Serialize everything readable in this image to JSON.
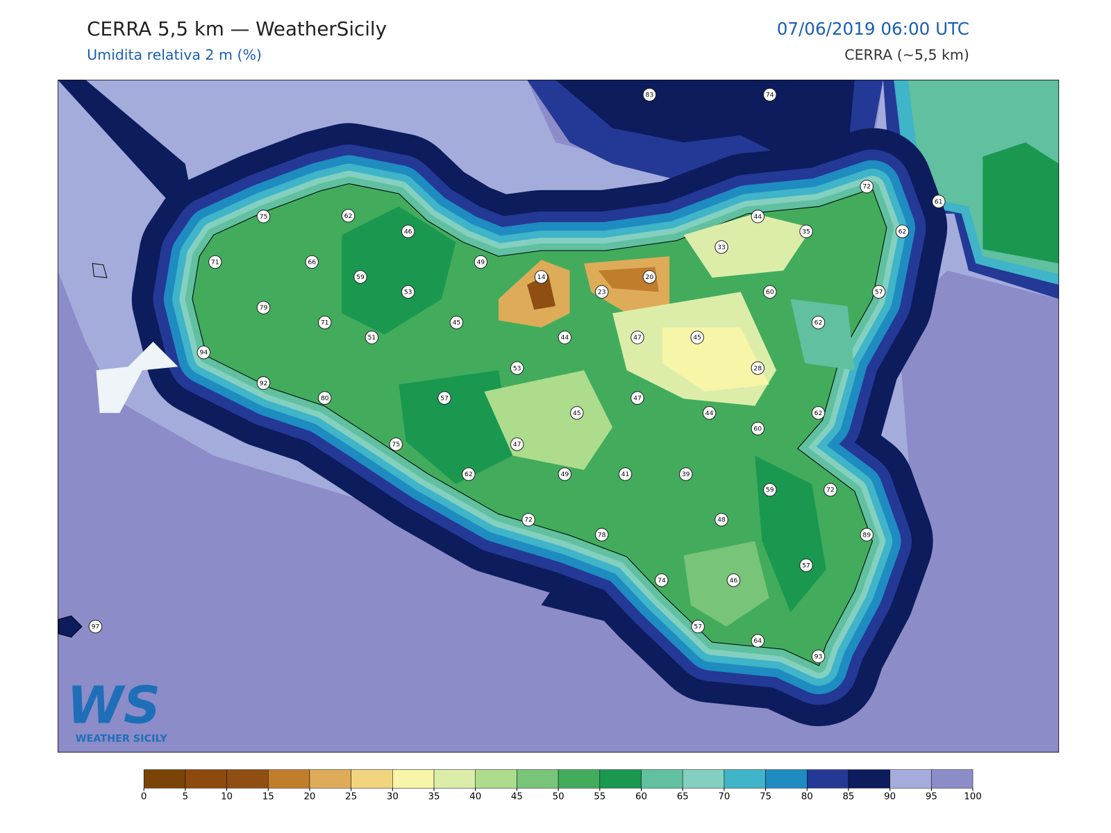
{
  "header": {
    "title": "CERRA 5,5 km — WeatherSicily",
    "subtitle": "Umidita relativa 2 m (%)",
    "date": "07/06/2019 06:00 UTC",
    "model": "CERRA (~5,5 km)"
  },
  "stations": [
    83,
    74,
    72,
    61,
    75,
    62,
    46,
    44,
    35,
    62,
    71,
    66,
    49,
    33,
    59,
    14,
    20,
    53,
    23,
    60,
    57,
    79,
    45,
    71,
    62,
    51,
    44,
    47,
    45,
    94,
    53,
    28,
    92,
    80,
    57,
    47,
    45,
    44,
    62,
    60,
    75,
    47,
    62,
    49,
    41,
    39,
    59,
    72,
    72,
    48,
    78,
    89,
    57,
    74,
    46,
    97,
    57,
    64,
    93
  ],
  "colorbar": {
    "ticks": [
      0,
      5,
      10,
      15,
      20,
      25,
      30,
      35,
      40,
      45,
      50,
      55,
      60,
      65,
      70,
      75,
      80,
      85,
      90,
      95,
      100
    ],
    "colors": [
      "#7a4406",
      "#8c4a0c",
      "#8f4f12",
      "#c07e2c",
      "#deac58",
      "#f0d57e",
      "#f7f5a8",
      "#dcedaa",
      "#acdc8c",
      "#78c478",
      "#42ac5c",
      "#1a9850",
      "#60c0a0",
      "#84d0c0",
      "#40b4c8",
      "#1e8cc0",
      "#243896",
      "#0c1c5c",
      "#a4acdc",
      "#8c8cc8"
    ]
  },
  "logo": {
    "initials": "WS",
    "name": "Weather Sicily"
  }
}
